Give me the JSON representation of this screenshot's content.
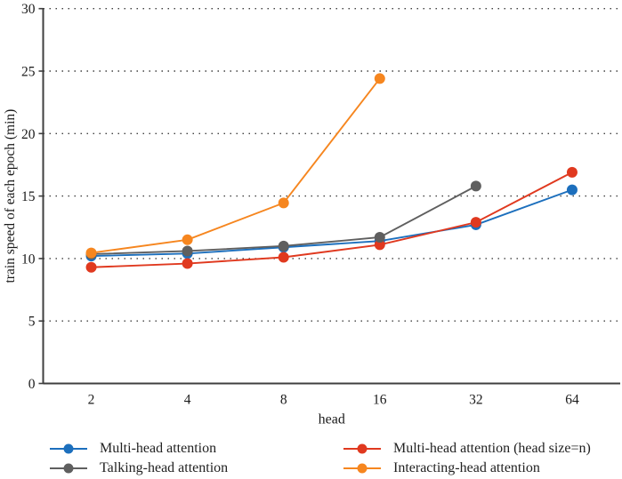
{
  "figure": {
    "background": "#ffffff",
    "text_color": "#1a1a1a",
    "axis_color": "#3f3f3f",
    "gridline_color": "#404040"
  },
  "chart_data": {
    "type": "line",
    "title": "",
    "xlabel": "head",
    "ylabel": "train speed of each epoch (min)",
    "categories": [
      "2",
      "4",
      "8",
      "16",
      "32",
      "64"
    ],
    "ylim": [
      0,
      30
    ],
    "yticks": [
      0,
      5,
      10,
      15,
      20,
      25,
      30
    ],
    "grid": "horizontal-dotted",
    "legend_position": "bottom-two-columns",
    "marker": "circle",
    "series": [
      {
        "name": "Multi-head attention",
        "color": "#1c6fbd",
        "values": [
          10.2,
          10.4,
          10.9,
          11.4,
          12.7,
          15.5
        ]
      },
      {
        "name": "Talking-head attention",
        "color": "#5f5f5f",
        "values": [
          10.35,
          10.6,
          11.0,
          11.7,
          15.8,
          null
        ]
      },
      {
        "name": "Multi-head attention (head size=n)",
        "color": "#e0391f",
        "values": [
          9.3,
          9.6,
          10.1,
          11.1,
          12.9,
          16.9
        ]
      },
      {
        "name": "Interacting-head attention",
        "color": "#f6861f",
        "values": [
          10.45,
          11.5,
          14.45,
          24.4,
          null,
          null
        ]
      }
    ],
    "draw_order": [
      0,
      2,
      1,
      3
    ]
  }
}
